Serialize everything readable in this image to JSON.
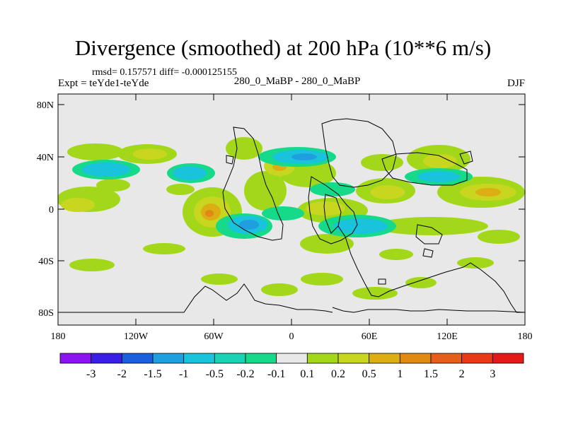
{
  "title": "Divergence (smoothed) at 200 hPa (10**6 m/s)",
  "stats": "rmsd= 0.157571 diff= -0.000125155",
  "experiment": "Expt = teYde1-teYde",
  "subtitle": "280_0_MaBP - 280_0_MaBP",
  "season": "DJF",
  "y_axis": {
    "labels": [
      "80N",
      "40N",
      "0",
      "40S",
      "80S"
    ]
  },
  "x_axis": {
    "labels": [
      "180",
      "120W",
      "60W",
      "0",
      "60E",
      "120E",
      "180"
    ]
  },
  "colorbar": {
    "labels": [
      "-3",
      "-2",
      "-1.5",
      "-1",
      "-0.5",
      "-0.2",
      "-0.1",
      "0.1",
      "0.2",
      "0.5",
      "1",
      "1.5",
      "2",
      "3"
    ],
    "colors": [
      "#8b14f0",
      "#3a1fe6",
      "#1a5fdc",
      "#1f9fe0",
      "#19c3dc",
      "#19d3b4",
      "#16d98a",
      "#e8e8e8",
      "#a3d81a",
      "#c8d61f",
      "#dcae14",
      "#e08a14",
      "#e4601a",
      "#e83a17",
      "#e41a1a"
    ]
  },
  "palette": {
    "background": "#e8e8e8",
    "coastline": "#000000"
  }
}
